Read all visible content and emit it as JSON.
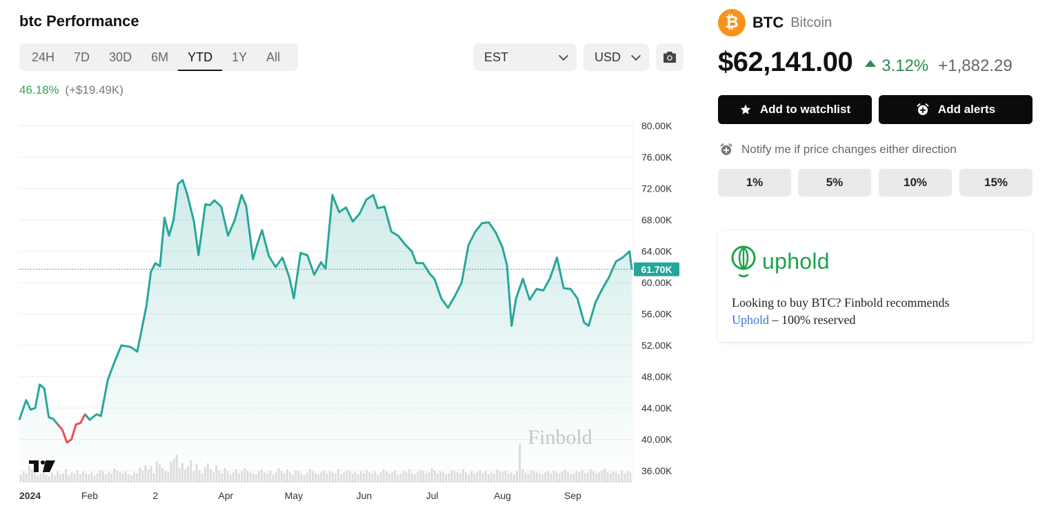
{
  "header": {
    "title": "btc Performance"
  },
  "ranges": [
    "24H",
    "7D",
    "30D",
    "6M",
    "YTD",
    "1Y",
    "All"
  ],
  "active_range": "YTD",
  "timezone": {
    "value": "EST"
  },
  "currency": {
    "value": "USD"
  },
  "icons": {
    "camera": "camera-icon",
    "star": "star-icon",
    "alarm": "alarm-icon",
    "chevron": "chevron-down-icon"
  },
  "performance": {
    "percent": "46.18%",
    "absolute": "(+$19.49K)"
  },
  "coin": {
    "symbol": "BTC",
    "name": "Bitcoin",
    "logo_glyph": "₿",
    "logo_color": "#f7931a"
  },
  "price": {
    "value": "$62,141.00",
    "change_pct": "3.12%",
    "change_abs": "+1,882.29"
  },
  "actions": {
    "watchlist": "Add to watchlist",
    "alerts": "Add alerts"
  },
  "notify": {
    "text": "Notify me if price changes either direction",
    "options": [
      "1%",
      "5%",
      "10%",
      "15%"
    ]
  },
  "promo": {
    "brand": "uphold",
    "text_line1": "Looking to buy BTC? Finbold recommends",
    "link": "Uphold",
    "text_line2_suffix": " – 100% reserved"
  },
  "colors": {
    "line": "#26a69a",
    "line_down": "#ef5350",
    "brand_green": "#1ba34a",
    "positive": "#2d8a4e"
  },
  "chart_data": {
    "type": "area",
    "watermark": "Finbold",
    "current_label": "61.70K",
    "current_value": 61700,
    "ylim": [
      34500,
      82000
    ],
    "y_ticks": [
      80000,
      76000,
      72000,
      68000,
      64000,
      60000,
      56000,
      52000,
      48000,
      44000,
      40000,
      36000
    ],
    "y_tick_labels": [
      "80.00K",
      "76.00K",
      "72.00K",
      "68.00K",
      "64.00K",
      "60.00K",
      "56.00K",
      "52.00K",
      "48.00K",
      "44.00K",
      "40.00K",
      "36.00K"
    ],
    "x_ticks": [
      {
        "label": "2024",
        "date": "2024-01-01",
        "bold": true
      },
      {
        "label": "Feb",
        "date": "2024-02-01"
      },
      {
        "label": "2",
        "date": "2024-03-01"
      },
      {
        "label": "Apr",
        "date": "2024-04-01"
      },
      {
        "label": "May",
        "date": "2024-05-01"
      },
      {
        "label": "Jun",
        "date": "2024-06-01"
      },
      {
        "label": "Jul",
        "date": "2024-07-01"
      },
      {
        "label": "Aug",
        "date": "2024-08-01"
      },
      {
        "label": "Sep",
        "date": "2024-09-01"
      }
    ],
    "x_range": [
      "2024-01-01",
      "2024-09-27"
    ],
    "series": [
      {
        "x": [
          "2024-01-01",
          "2024-01-04",
          "2024-01-06",
          "2024-01-08",
          "2024-01-10",
          "2024-01-12",
          "2024-01-14",
          "2024-01-16",
          "2024-01-18",
          "2024-01-20",
          "2024-01-22",
          "2024-01-24",
          "2024-01-26",
          "2024-01-28",
          "2024-01-30",
          "2024-02-01",
          "2024-02-04",
          "2024-02-06",
          "2024-02-09",
          "2024-02-12",
          "2024-02-15",
          "2024-02-19",
          "2024-02-22",
          "2024-02-26",
          "2024-02-28",
          "2024-03-01",
          "2024-03-03",
          "2024-03-05",
          "2024-03-07",
          "2024-03-09",
          "2024-03-11",
          "2024-03-13",
          "2024-03-15",
          "2024-03-18",
          "2024-03-20",
          "2024-03-23",
          "2024-03-25",
          "2024-03-27",
          "2024-03-30",
          "2024-04-02",
          "2024-04-05",
          "2024-04-08",
          "2024-04-10",
          "2024-04-13",
          "2024-04-15",
          "2024-04-17",
          "2024-04-20",
          "2024-04-23",
          "2024-04-26",
          "2024-04-29",
          "2024-05-01",
          "2024-05-04",
          "2024-05-07",
          "2024-05-10",
          "2024-05-13",
          "2024-05-15",
          "2024-05-18",
          "2024-05-21",
          "2024-05-24",
          "2024-05-27",
          "2024-05-30",
          "2024-06-02",
          "2024-06-05",
          "2024-06-07",
          "2024-06-10",
          "2024-06-13",
          "2024-06-16",
          "2024-06-19",
          "2024-06-22",
          "2024-06-24",
          "2024-06-27",
          "2024-06-30",
          "2024-07-02",
          "2024-07-05",
          "2024-07-08",
          "2024-07-11",
          "2024-07-14",
          "2024-07-17",
          "2024-07-20",
          "2024-07-23",
          "2024-07-26",
          "2024-07-29",
          "2024-08-01",
          "2024-08-03",
          "2024-08-05",
          "2024-08-07",
          "2024-08-10",
          "2024-08-13",
          "2024-08-16",
          "2024-08-19",
          "2024-08-22",
          "2024-08-25",
          "2024-08-28",
          "2024-08-31",
          "2024-09-03",
          "2024-09-06",
          "2024-09-08",
          "2024-09-11",
          "2024-09-14",
          "2024-09-17",
          "2024-09-20",
          "2024-09-23",
          "2024-09-26",
          "2024-09-27"
        ],
        "y": [
          42500,
          45000,
          43800,
          44000,
          47000,
          46500,
          42800,
          42600,
          41900,
          41200,
          39600,
          40000,
          41900,
          42100,
          43200,
          42500,
          43200,
          43000,
          47600,
          49900,
          52000,
          51800,
          51200,
          57000,
          61400,
          62500,
          62100,
          68300,
          66000,
          68000,
          72600,
          73100,
          71300,
          67800,
          63500,
          70000,
          69900,
          70500,
          69700,
          66000,
          68000,
          71200,
          69800,
          63000,
          65000,
          66700,
          63400,
          62000,
          63200,
          60700,
          58000,
          63800,
          63500,
          61000,
          62600,
          61800,
          71200,
          69000,
          69600,
          67800,
          68800,
          70600,
          71200,
          69500,
          69700,
          66500,
          66000,
          64900,
          64000,
          62500,
          62500,
          61100,
          60500,
          58000,
          56800,
          58300,
          60000,
          64800,
          66500,
          67600,
          67700,
          66400,
          64500,
          62200,
          54500,
          58000,
          60500,
          57800,
          59200,
          59000,
          60600,
          63200,
          59300,
          59200,
          58000,
          54900,
          54500,
          57500,
          59200,
          60700,
          62700,
          63200,
          64000,
          61700
        ]
      }
    ],
    "down_segment": {
      "from": "2024-01-19",
      "to": "2024-01-29"
    },
    "volume": [
      8,
      11,
      9,
      17,
      13,
      10,
      7,
      9,
      12,
      8,
      6,
      10,
      7,
      11,
      8,
      9,
      13,
      7,
      10,
      9,
      12,
      8,
      11,
      9,
      8,
      10,
      7,
      9,
      12,
      11,
      8,
      10,
      9,
      14,
      12,
      10,
      9,
      11,
      8,
      7,
      10,
      9,
      15,
      12,
      17,
      13,
      16,
      9,
      21,
      18,
      14,
      11,
      10,
      20,
      23,
      27,
      14,
      19,
      13,
      16,
      22,
      11,
      18,
      12,
      9,
      15,
      19,
      13,
      10,
      17,
      12,
      9,
      14,
      11,
      8,
      10,
      13,
      9,
      11,
      14,
      12,
      10,
      9,
      8,
      11,
      13,
      10,
      9,
      12,
      8,
      10,
      14,
      11,
      9,
      13,
      10,
      8,
      12,
      11,
      9,
      7,
      10,
      13,
      11,
      9,
      8,
      10,
      12,
      9,
      11,
      10,
      9,
      13,
      8,
      10,
      12,
      11,
      9,
      10,
      8,
      11,
      9,
      12,
      10,
      9,
      11,
      8,
      10,
      13,
      11,
      9,
      10,
      12,
      8,
      9,
      11,
      10,
      13,
      9,
      8,
      10,
      12,
      11,
      9,
      10,
      14,
      12,
      9,
      11,
      10,
      8,
      9,
      12,
      11,
      10,
      9,
      13,
      10,
      8,
      11,
      9,
      10,
      12,
      9,
      11,
      8,
      10,
      9,
      13,
      11,
      10,
      12,
      9,
      10,
      8,
      11,
      38,
      13,
      10,
      9,
      12,
      11,
      10,
      9,
      8,
      10,
      11,
      9,
      12,
      10,
      9,
      11,
      13,
      10,
      8,
      9,
      11,
      10,
      12,
      9,
      10,
      13,
      11,
      9,
      10,
      12,
      14,
      10,
      9,
      11,
      10,
      8,
      12,
      9,
      11,
      10
    ]
  }
}
